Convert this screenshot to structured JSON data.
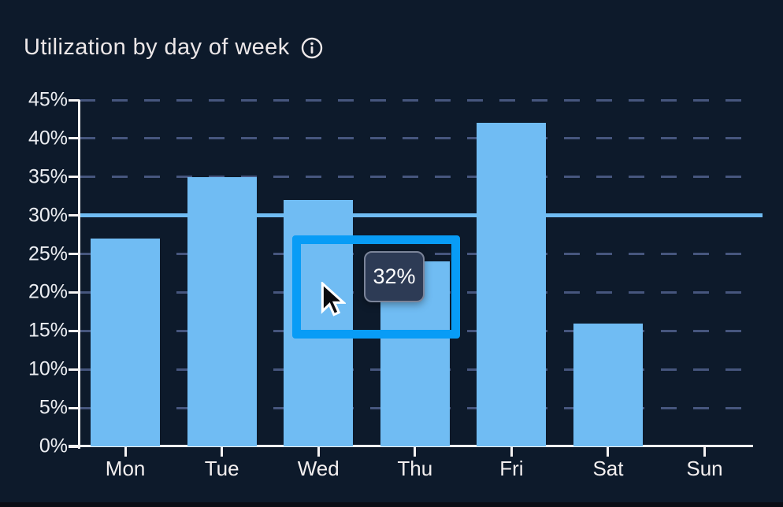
{
  "header": {
    "title": "Utilization by day of week"
  },
  "colors": {
    "background": "#0d1a2b",
    "bar": "#70bcf3",
    "gridline": "#46567e",
    "axis": "#f5f3f3",
    "reference_line": "#70bcf3",
    "selection_border": "#089cf6",
    "tooltip_background": "#2d3b55",
    "tooltip_border": "#7b8499",
    "title_text": "#ece7e8"
  },
  "chart_data": {
    "type": "bar",
    "title": "Utilization by day of week",
    "categories": [
      "Mon",
      "Tue",
      "Wed",
      "Thu",
      "Fri",
      "Sat",
      "Sun"
    ],
    "values": [
      27,
      35,
      32,
      24,
      42,
      16,
      0
    ],
    "unit": "%",
    "xlabel": "",
    "ylabel": "",
    "ylim": [
      0,
      45
    ],
    "ytick_step": 5,
    "ytick_labels": [
      "0%",
      "5%",
      "10%",
      "15%",
      "20%",
      "25%",
      "30%",
      "35%",
      "40%",
      "45%"
    ],
    "grid": "horizontal-dashed",
    "legend_position": "none",
    "reference_line": {
      "value": 30,
      "style": "solid"
    }
  },
  "overlay": {
    "tooltip": {
      "label": "32%"
    },
    "selection_box": {
      "present": true
    },
    "cursor": "arrow-pointer"
  }
}
